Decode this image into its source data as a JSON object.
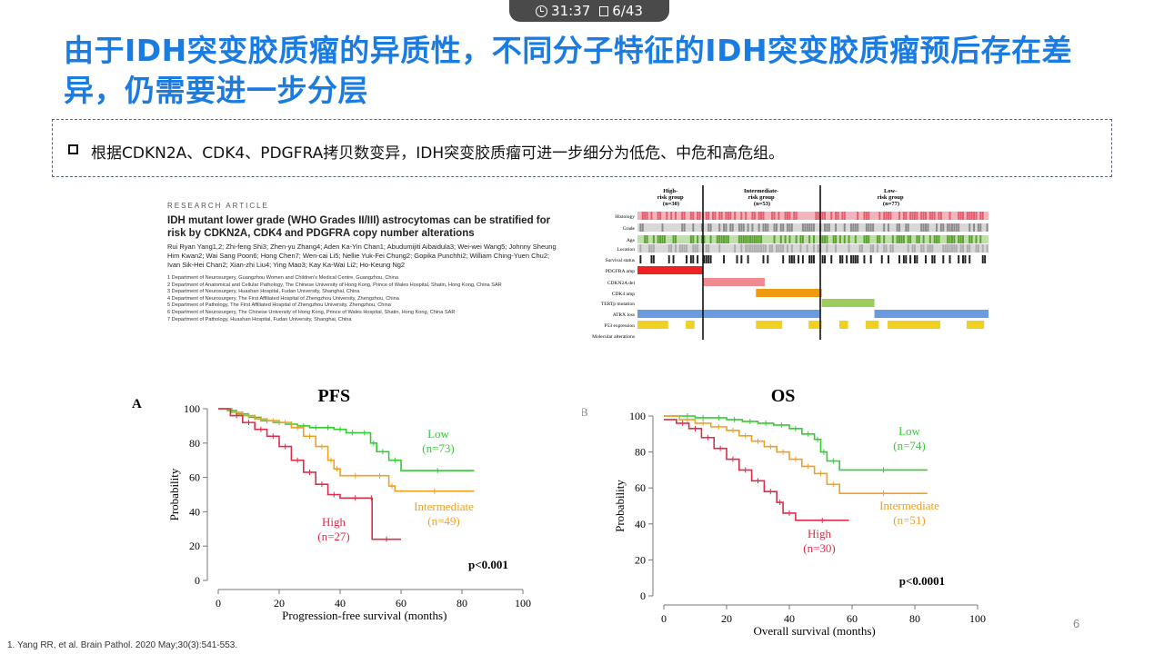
{
  "status": {
    "time": "31:37",
    "slide_counter": "6/43"
  },
  "slide": {
    "title": "由于IDH突变胶质瘤的异质性，不同分子特征的IDH突变胶质瘤预后存在差异，仍需要进一步分层",
    "bullet": "根据CDKN2A、CDK4、PDGFRA拷贝数变异，IDH突变胶质瘤可进一步细分为低危、中危和高危组。",
    "page_number": "6",
    "reference": "1. Yang RR, et al. Brain Pathol. 2020 May;30(3):541-553."
  },
  "paper": {
    "label": "RESEARCH ARTICLE",
    "title": "IDH mutant lower grade (WHO Grades II/III) astrocytomas can be stratified for risk by CDKN2A, CDK4 and PDGFRA copy number alterations",
    "authors": "Rui Ryan Yang1,2; Zhi-feng Shi3; Zhen-yu Zhang4; Aden Ka-Yin Chan1; Abudumijiti Aibaidula3; Wei-wei Wang5; Johnny Sheung Him Kwan2; Wai Sang Poon6; Hong Chen7; Wen-cai Li5; Nellie Yuk-Fei Chung2; Gopika Punchhi2; William Ching-Yuen Chu2; Ivan Sik-Hei Chan2; Xian-zhi Liu4; Ying Mao3; Kay Ka-Wai Li2; Ho-Keung Ng2",
    "affiliations": [
      "1 Department of Neurosurgery, Guangzhou Women and Children's Medical Centre, Guangzhou, China",
      "2 Department of Anatomical and Cellular Pathology, The Chinese University of Hong Kong, Prince of Wales Hospital, Shatin, Hong Kong, China SAR",
      "3 Department of Neurosurgery, Huashan Hospital, Fudan University, Shanghai, China",
      "4 Department of Neurosurgery, The First Affiliated Hospital of Zhengzhou University, Zhengzhou, China",
      "5 Department of Pathology, The First Affiliated Hospital of Zhengzhou University, Zhengzhou, China",
      "6 Department of Neurosurgery, The Chinese University of Hong Kong, Prince of Wales Hospital, Shatin, Hong Kong, China SAR",
      "7 Department of Pathology, Huashan Hospital, Fudan University, Shanghai, China"
    ]
  },
  "heatmap": {
    "groups": [
      {
        "line1": "High-",
        "line2": "risk group",
        "line3": "(n=30)"
      },
      {
        "line1": "Intermediate-",
        "line2": "risk group",
        "line3": "(n=53)"
      },
      {
        "line1": "Low-",
        "line2": "risk group",
        "line3": "(n=77)"
      }
    ],
    "rows": [
      "Histology",
      "Grade",
      "Age",
      "Location",
      "Survival status",
      "PDGFRA amp",
      "CDKN2A del",
      "CDK4 amp",
      "TERTp mutation",
      "ATRX loss",
      "P53 expression",
      "Molecular alterations"
    ],
    "colors": {
      "histology": "#e85a6a",
      "grade": "#8a8a8a",
      "age": "#5aa02c",
      "location": "#9a9a9a",
      "survival": "#222222",
      "pdgfra": "#ee2222",
      "cdkn2a": "#f08a90",
      "cdk4": "#ee9a10",
      "tert": "#9ccc5a",
      "atrx": "#6a9ae0",
      "p53": "#f0d020"
    }
  },
  "chart_data": [
    {
      "type": "line",
      "panel_label": "A",
      "title": "PFS",
      "xlabel": "Progression-free survival (months)",
      "ylabel": "Probability",
      "xlim": [
        0,
        100
      ],
      "ylim": [
        0,
        100
      ],
      "xticks": [
        "0",
        "20",
        "40",
        "60",
        "80",
        "100"
      ],
      "yticks": [
        "0",
        "20",
        "40",
        "60",
        "80",
        "100"
      ],
      "p_value": "p<0.001",
      "series": [
        {
          "name": "Low",
          "n_label": "(n=73)",
          "color": "#33cc33",
          "x": [
            0,
            3,
            6,
            10,
            14,
            18,
            22,
            26,
            30,
            34,
            38,
            42,
            46,
            50,
            52,
            56,
            60,
            84
          ],
          "y": [
            100,
            99,
            97,
            95,
            93,
            92,
            91,
            90,
            89,
            89,
            88,
            86,
            86,
            80,
            75,
            70,
            64,
            64
          ]
        },
        {
          "name": "Intermediate",
          "n_label": "(n=49)",
          "color": "#f0a020",
          "x": [
            0,
            4,
            8,
            12,
            16,
            20,
            24,
            28,
            32,
            36,
            38,
            40,
            50,
            56,
            58,
            84
          ],
          "y": [
            100,
            98,
            96,
            94,
            93,
            92,
            89,
            84,
            78,
            70,
            65,
            61,
            61,
            55,
            52,
            52
          ]
        },
        {
          "name": "High",
          "n_label": "(n=27)",
          "color": "#dd2d4a",
          "x": [
            0,
            4,
            8,
            12,
            16,
            20,
            24,
            28,
            32,
            36,
            40,
            50,
            50.5,
            60
          ],
          "y": [
            100,
            96,
            92,
            88,
            84,
            78,
            70,
            63,
            56,
            50,
            48,
            48,
            24,
            24
          ]
        }
      ]
    },
    {
      "type": "line",
      "panel_label": "B",
      "title": "OS",
      "xlabel": "Overall survival (months)",
      "ylabel": "Probability",
      "xlim": [
        0,
        100
      ],
      "ylim": [
        0,
        100
      ],
      "xticks": [
        "0",
        "20",
        "40",
        "60",
        "80",
        "100"
      ],
      "yticks": [
        "0",
        "20",
        "40",
        "60",
        "80",
        "100"
      ],
      "p_value": "p<0.0001",
      "series": [
        {
          "name": "Low",
          "n_label": "(n=74)",
          "color": "#33cc33",
          "x": [
            0,
            5,
            10,
            15,
            20,
            25,
            30,
            35,
            40,
            44,
            48,
            50,
            52,
            56,
            84
          ],
          "y": [
            100,
            100,
            99,
            99,
            98,
            97,
            96,
            95,
            93,
            90,
            87,
            80,
            75,
            70,
            70
          ]
        },
        {
          "name": "Intermediate",
          "n_label": "(n=51)",
          "color": "#f0a020",
          "x": [
            0,
            5,
            10,
            15,
            20,
            24,
            28,
            32,
            36,
            40,
            44,
            48,
            52,
            56,
            84
          ],
          "y": [
            100,
            98,
            96,
            94,
            92,
            89,
            86,
            83,
            80,
            76,
            72,
            68,
            62,
            57,
            57
          ]
        },
        {
          "name": "High",
          "n_label": "(n=30)",
          "color": "#dd2d4a",
          "x": [
            0,
            4,
            8,
            12,
            16,
            20,
            24,
            28,
            32,
            36,
            38,
            42,
            59
          ],
          "y": [
            98,
            96,
            93,
            88,
            82,
            76,
            70,
            64,
            58,
            52,
            46,
            42,
            42
          ]
        }
      ]
    }
  ]
}
